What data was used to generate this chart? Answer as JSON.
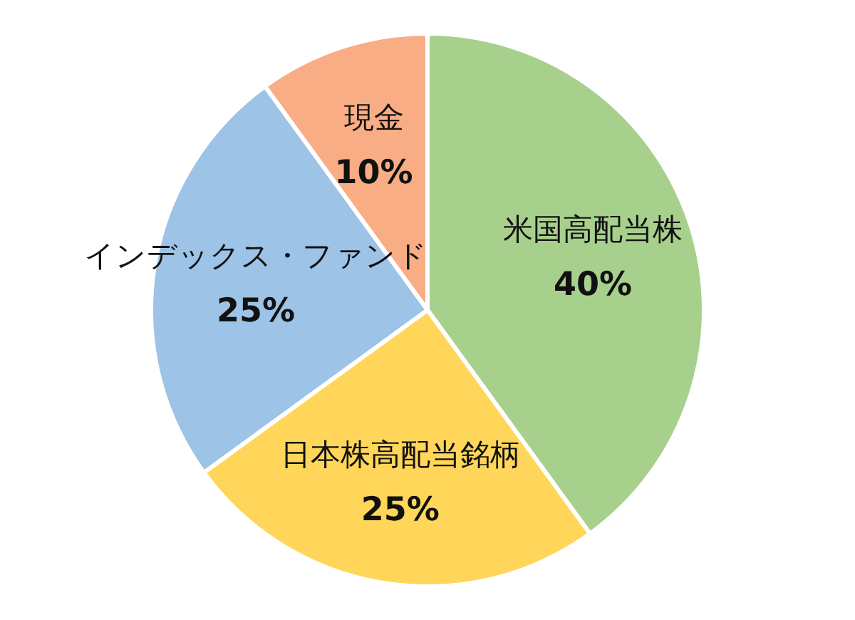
{
  "chart_data": {
    "type": "pie",
    "categories": [
      "米国高配当株",
      "日本株高配当銘柄",
      "インデックス・ファンド",
      "現金"
    ],
    "values": [
      40,
      25,
      25,
      10
    ],
    "colors": [
      "#a8d08d",
      "#ffd659",
      "#9dc3e6",
      "#f8ad85"
    ],
    "value_labels": [
      "40%",
      "25%",
      "25%",
      "10%"
    ]
  }
}
